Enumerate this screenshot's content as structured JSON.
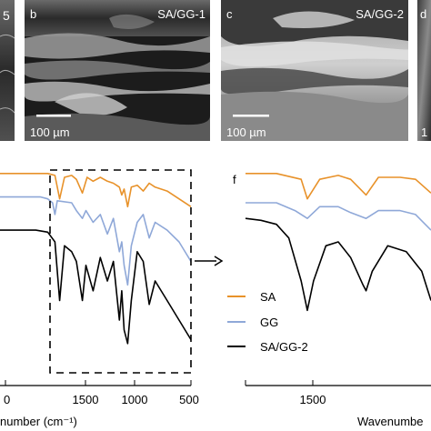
{
  "sem_panels": [
    {
      "letter": "5",
      "title": "",
      "scale": ""
    },
    {
      "letter": "b",
      "title": "SA/GG-1",
      "scale": "100 µm"
    },
    {
      "letter": "c",
      "title": "SA/GG-2",
      "scale": "100 µm"
    },
    {
      "letter": "d",
      "title": "",
      "scale": "1"
    }
  ],
  "panel_f_letter": "f",
  "colors": {
    "SA": "#e8922a",
    "GG": "#8fa8d8",
    "SA/GG-2": "#000000"
  },
  "chart_data": [
    {
      "type": "line",
      "title": "",
      "xlabel": "number (cm⁻¹)",
      "ylabel": "",
      "x_ticks": [
        "0",
        "1500",
        "1000",
        "500"
      ],
      "xlim": [
        2100,
        500
      ],
      "legend": [],
      "series": [
        {
          "name": "SA",
          "x": [
            2100,
            1760,
            1700,
            1640,
            1600,
            1560,
            1500,
            1460,
            1410,
            1370,
            1320,
            1260,
            1200,
            1150,
            1100,
            1080,
            1060,
            1030,
            1000,
            950,
            900,
            850,
            800,
            700,
            600,
            500
          ],
          "y": [
            0.95,
            0.95,
            0.95,
            0.94,
            0.82,
            0.93,
            0.94,
            0.92,
            0.85,
            0.93,
            0.91,
            0.93,
            0.91,
            0.9,
            0.88,
            0.84,
            0.87,
            0.78,
            0.88,
            0.89,
            0.86,
            0.9,
            0.88,
            0.86,
            0.82,
            0.78
          ]
        },
        {
          "name": "GG",
          "x": [
            2100,
            1760,
            1700,
            1660,
            1640,
            1620,
            1500,
            1460,
            1410,
            1380,
            1320,
            1260,
            1200,
            1150,
            1100,
            1080,
            1060,
            1030,
            1000,
            950,
            900,
            850,
            800,
            700,
            600,
            500
          ],
          "y": [
            0.83,
            0.83,
            0.82,
            0.8,
            0.74,
            0.81,
            0.8,
            0.76,
            0.72,
            0.76,
            0.7,
            0.74,
            0.64,
            0.72,
            0.55,
            0.6,
            0.48,
            0.38,
            0.58,
            0.7,
            0.74,
            0.62,
            0.7,
            0.66,
            0.6,
            0.5
          ]
        },
        {
          "name": "SA/GG-2",
          "x": [
            2100,
            1800,
            1700,
            1640,
            1600,
            1560,
            1500,
            1460,
            1410,
            1380,
            1320,
            1260,
            1200,
            1150,
            1100,
            1080,
            1060,
            1030,
            1000,
            950,
            900,
            850,
            800,
            700,
            600,
            500
          ],
          "y": [
            0.66,
            0.66,
            0.65,
            0.6,
            0.3,
            0.58,
            0.55,
            0.5,
            0.3,
            0.48,
            0.35,
            0.52,
            0.4,
            0.5,
            0.2,
            0.35,
            0.15,
            0.08,
            0.3,
            0.55,
            0.5,
            0.28,
            0.4,
            0.3,
            0.2,
            0.1
          ]
        }
      ]
    },
    {
      "type": "line",
      "title": "",
      "xlabel": "Wavenumbe",
      "ylabel": "",
      "x_ticks": [
        "1500"
      ],
      "xlim": [
        1800,
        1200
      ],
      "legend": [
        "SA",
        "GG",
        "SA/GG-2"
      ],
      "series": [
        {
          "name": "SA",
          "x": [
            1800,
            1700,
            1620,
            1600,
            1560,
            1500,
            1460,
            1410,
            1370,
            1300,
            1250,
            1200
          ],
          "y": [
            0.95,
            0.95,
            0.92,
            0.82,
            0.92,
            0.94,
            0.92,
            0.84,
            0.93,
            0.93,
            0.92,
            0.85
          ]
        },
        {
          "name": "GG",
          "x": [
            1800,
            1700,
            1640,
            1600,
            1560,
            1500,
            1460,
            1410,
            1370,
            1300,
            1250,
            1200
          ],
          "y": [
            0.8,
            0.8,
            0.76,
            0.72,
            0.78,
            0.78,
            0.75,
            0.72,
            0.76,
            0.76,
            0.74,
            0.66
          ]
        },
        {
          "name": "SA/GG-2",
          "x": [
            1800,
            1750,
            1700,
            1660,
            1620,
            1600,
            1580,
            1540,
            1500,
            1460,
            1420,
            1410,
            1390,
            1340,
            1280,
            1230,
            1200
          ],
          "y": [
            0.72,
            0.71,
            0.69,
            0.62,
            0.4,
            0.25,
            0.4,
            0.58,
            0.6,
            0.52,
            0.38,
            0.35,
            0.45,
            0.58,
            0.55,
            0.45,
            0.3
          ]
        }
      ]
    }
  ]
}
